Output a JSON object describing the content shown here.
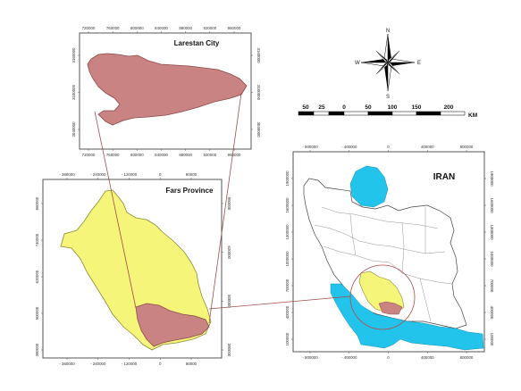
{
  "figure": {
    "frame_color": "#555555",
    "colors": {
      "fars_fill": "#f5f57a",
      "fars_stroke": "#8a8a3a",
      "larestan_fill": "#c98382",
      "larestan_stroke": "#8b4a4a",
      "water_fill": "#22c4ec",
      "highlight_circle": "#b74a4a",
      "connector_line": "#a24a4a"
    }
  },
  "larestan_map": {
    "title": "Larestan City",
    "x_ticks_top": [
      "720000",
      "760000",
      "800000",
      "840000",
      "880000",
      "920000",
      "960000"
    ],
    "x_ticks_bottom": [
      "720000",
      "760000",
      "800000",
      "840000",
      "880000",
      "920000",
      "960000"
    ],
    "y_ticks_left": [
      "3160000",
      "3100000",
      "3040000"
    ],
    "y_ticks_right": [
      "3160000",
      "3100000",
      "3040000"
    ]
  },
  "fars_map": {
    "title": "Fars Province",
    "x_ticks_top": [
      "- 360000",
      "- 240000",
      "- 120000",
      "0",
      "80000"
    ],
    "x_ticks_bottom": [
      "- 360000",
      "- 240000",
      "- 120000",
      "0",
      "80000"
    ],
    "y_ticks_left": [
      "860000",
      "740000",
      "620000",
      "500000",
      "380000"
    ],
    "y_ticks_right": [
      "860000",
      "620000",
      "500000",
      "380000"
    ]
  },
  "iran_map": {
    "title": "IRAN",
    "x_ticks_top": [
      "- 800000",
      "- 400000",
      "0",
      "400000",
      "800000"
    ],
    "x_ticks_bottom": [
      "- 800000",
      "- 400000",
      "0",
      "400000",
      "800000"
    ],
    "y_ticks_left": [
      "1900000",
      "1600000",
      "1300000",
      "1000000",
      "700000",
      "400000",
      "100000"
    ],
    "y_ticks_right": [
      "1900000",
      "1600000",
      "1300000",
      "1000000",
      "700000",
      "400000",
      "100000"
    ]
  },
  "scale_bar": {
    "labels": [
      "50",
      "25",
      "0",
      "50",
      "100",
      "150",
      "200"
    ],
    "unit": "KM"
  },
  "compass": {
    "north": "N",
    "south": "S",
    "east": "E",
    "west": "W"
  }
}
